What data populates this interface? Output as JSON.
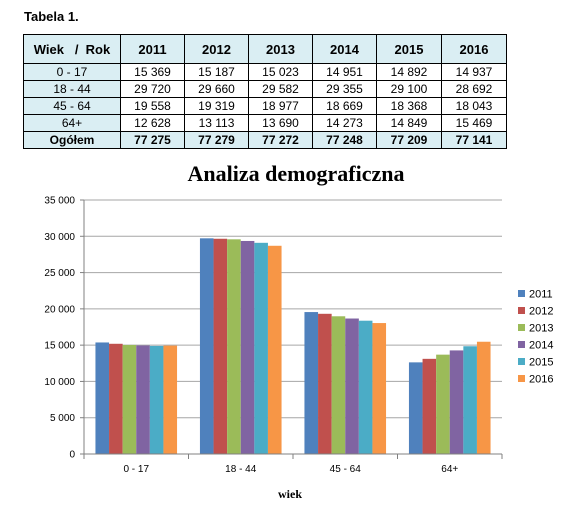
{
  "table": {
    "caption": "Tabela 1.",
    "header_first": "Wiek   /  Rok",
    "years": [
      "2011",
      "2012",
      "2013",
      "2014",
      "2015",
      "2016"
    ],
    "rows": [
      {
        "label": "0 - 17",
        "values": [
          "15 369",
          "15 187",
          "15 023",
          "14 951",
          "14 892",
          "14 937"
        ]
      },
      {
        "label": "18 - 44",
        "values": [
          "29 720",
          "29 660",
          "29 582",
          "29 355",
          "29 100",
          "28 692"
        ]
      },
      {
        "label": "45 - 64",
        "values": [
          "19 558",
          "19 319",
          "18 977",
          "18 669",
          "18 368",
          "18 043"
        ]
      },
      {
        "label": "64+",
        "values": [
          "12 628",
          "13 113",
          "13 690",
          "14 273",
          "14 849",
          "15 469"
        ]
      }
    ],
    "total": {
      "label": "Ogółem",
      "values": [
        "77 275",
        "77 279",
        "77 272",
        "77 248",
        "77 209",
        "77 141"
      ]
    }
  },
  "chart_data": {
    "type": "bar",
    "title": "Analiza demograficzna",
    "xlabel": "wiek",
    "ylabel": "",
    "categories": [
      "0 - 17",
      "18 - 44",
      "45 - 64",
      "64+"
    ],
    "series": [
      {
        "name": "2011",
        "color": "#4F81BD",
        "values": [
          15369,
          29720,
          19558,
          12628
        ]
      },
      {
        "name": "2012",
        "color": "#C0504D",
        "values": [
          15187,
          29660,
          19319,
          13113
        ]
      },
      {
        "name": "2013",
        "color": "#9BBB59",
        "values": [
          15023,
          29582,
          18977,
          13690
        ]
      },
      {
        "name": "2014",
        "color": "#8064A2",
        "values": [
          14951,
          29355,
          18669,
          14273
        ]
      },
      {
        "name": "2015",
        "color": "#4BACC6",
        "values": [
          14892,
          29100,
          18368,
          14849
        ]
      },
      {
        "name": "2016",
        "color": "#F79646",
        "values": [
          14937,
          28692,
          18043,
          15469
        ]
      }
    ],
    "ylim": [
      0,
      35000
    ],
    "yticks": [
      0,
      5000,
      10000,
      15000,
      20000,
      25000,
      30000,
      35000
    ],
    "ytick_labels": [
      "0",
      "5 000",
      "10 000",
      "15 000",
      "20 000",
      "25 000",
      "30 000",
      "35 000"
    ],
    "grid": true,
    "legend": "right"
  }
}
